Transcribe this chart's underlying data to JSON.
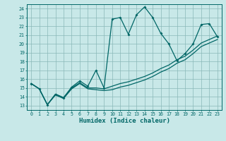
{
  "xlabel": "Humidex (Indice chaleur)",
  "bg_color": "#c8e8e8",
  "grid_color": "#8ab8b8",
  "line_color": "#006666",
  "xlim": [
    -0.5,
    23.5
  ],
  "ylim": [
    12.5,
    24.5
  ],
  "main_x": [
    0,
    1,
    2,
    3,
    4,
    5,
    6,
    7,
    8,
    9,
    10,
    11,
    12,
    13,
    14,
    15,
    16,
    17,
    18,
    19,
    20,
    21,
    22,
    23
  ],
  "main_y": [
    15.5,
    14.9,
    13.1,
    14.3,
    13.9,
    15.1,
    15.8,
    15.2,
    17.0,
    15.0,
    22.8,
    23.0,
    21.1,
    23.3,
    24.2,
    23.0,
    21.2,
    20.0,
    18.1,
    18.9,
    20.0,
    22.2,
    22.3,
    20.8
  ],
  "trend1_x": [
    0,
    1,
    2,
    3,
    4,
    5,
    6,
    7,
    8,
    9,
    10,
    11,
    12,
    13,
    14,
    15,
    16,
    17,
    18,
    19,
    20,
    21,
    22,
    23
  ],
  "trend1_y": [
    15.5,
    14.9,
    13.1,
    14.3,
    13.9,
    15.0,
    15.6,
    15.0,
    15.0,
    14.9,
    15.2,
    15.5,
    15.7,
    16.0,
    16.3,
    16.7,
    17.2,
    17.6,
    18.2,
    18.6,
    19.3,
    20.1,
    20.5,
    20.9
  ],
  "trend2_x": [
    0,
    1,
    2,
    3,
    4,
    5,
    6,
    7,
    8,
    9,
    10,
    11,
    12,
    13,
    14,
    15,
    16,
    17,
    18,
    19,
    20,
    21,
    22,
    23
  ],
  "trend2_y": [
    15.5,
    14.9,
    13.1,
    14.2,
    13.8,
    14.9,
    15.5,
    14.9,
    14.8,
    14.7,
    14.8,
    15.1,
    15.3,
    15.6,
    15.9,
    16.3,
    16.8,
    17.2,
    17.8,
    18.2,
    18.9,
    19.7,
    20.1,
    20.5
  ]
}
